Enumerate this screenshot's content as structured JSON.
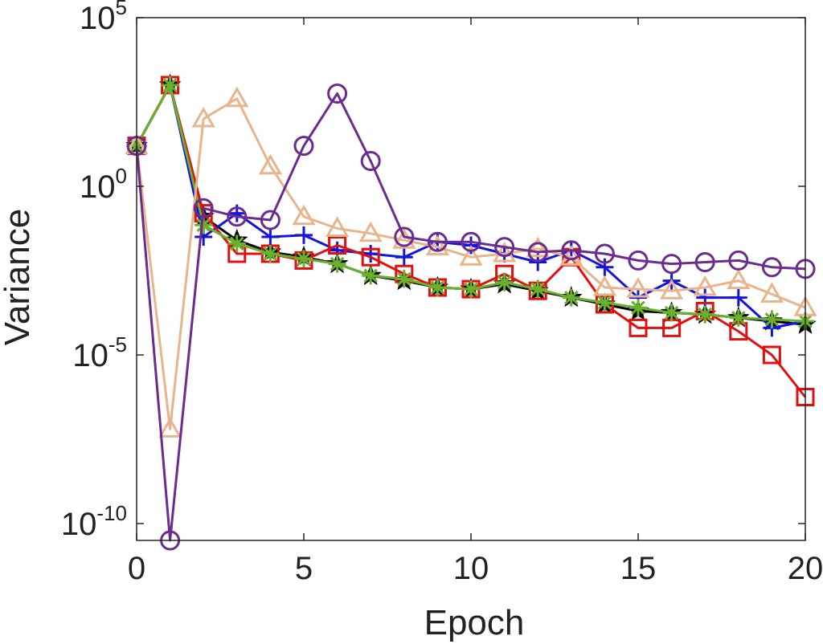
{
  "chart_data": {
    "type": "line",
    "title": "",
    "xlabel": "Epoch",
    "ylabel": "Variance",
    "xlim": [
      0,
      20
    ],
    "ylim_log10": [
      -10.5,
      5
    ],
    "yscale": "log",
    "grid": false,
    "box": true,
    "x_ticks": [
      "0",
      "5",
      "10",
      "15",
      "20"
    ],
    "y_ticks": [
      {
        "base": "10",
        "exp": "5",
        "value_log10": 5
      },
      {
        "base": "10",
        "exp": "0",
        "value_log10": 0
      },
      {
        "base": "10",
        "exp": "-5",
        "value_log10": -5
      },
      {
        "base": "10",
        "exp": "-10",
        "value_log10": -10
      }
    ],
    "x": [
      0,
      1,
      2,
      3,
      4,
      5,
      6,
      7,
      8,
      9,
      10,
      11,
      12,
      13,
      14,
      15,
      16,
      17,
      18,
      19,
      20
    ],
    "series": [
      {
        "color": "#000000",
        "marker": "pentagram",
        "log10_values": [
          1.2,
          3.0,
          -0.9,
          -1.6,
          -1.95,
          -2.1,
          -2.3,
          -2.65,
          -2.8,
          -3.0,
          -3.05,
          -2.9,
          -3.1,
          -3.3,
          -3.5,
          -3.7,
          -3.75,
          -3.8,
          -3.9,
          -4.0,
          -4.1
        ]
      },
      {
        "color": "#1414e0",
        "marker": "plus",
        "log10_values": [
          1.2,
          3.0,
          -1.5,
          -0.8,
          -1.5,
          -1.45,
          -1.9,
          -2.0,
          -2.1,
          -1.65,
          -1.75,
          -2.0,
          -2.25,
          -1.9,
          -2.4,
          -3.3,
          -2.8,
          -3.3,
          -3.3,
          -4.2,
          -4.0
        ]
      },
      {
        "color": "#e01010",
        "marker": "square",
        "log10_values": [
          1.2,
          3.0,
          -0.8,
          -2.0,
          -2.0,
          -2.2,
          -1.75,
          -2.1,
          -2.6,
          -3.0,
          -3.05,
          -2.6,
          -3.1,
          -2.1,
          -3.5,
          -4.2,
          -4.2,
          -3.7,
          -4.3,
          -5.0,
          -6.25
        ]
      },
      {
        "color": "#6ab02c",
        "marker": "asterisk",
        "log10_values": [
          1.2,
          3.0,
          -1.15,
          -1.7,
          -2.0,
          -2.15,
          -2.3,
          -2.65,
          -2.75,
          -3.0,
          -3.05,
          -2.85,
          -3.05,
          -3.3,
          -3.45,
          -3.6,
          -3.75,
          -3.8,
          -3.9,
          -3.95,
          -4.0
        ]
      },
      {
        "color": "#e8b48c",
        "marker": "triangle",
        "log10_values": [
          1.2,
          -7.2,
          2.0,
          2.6,
          0.6,
          -0.9,
          -1.25,
          -1.4,
          -1.6,
          -1.8,
          -2.1,
          -2.0,
          -1.85,
          -2.1,
          -3.0,
          -3.05,
          -3.1,
          -3.0,
          -2.8,
          -3.2,
          -3.6
        ]
      },
      {
        "color": "#6a2c8e",
        "marker": "circle",
        "log10_values": [
          1.2,
          -10.5,
          -0.65,
          -0.9,
          -1.0,
          1.2,
          2.75,
          0.75,
          -1.5,
          -1.65,
          -1.65,
          -1.8,
          -1.95,
          -1.9,
          -2.0,
          -2.2,
          -2.3,
          -2.25,
          -2.2,
          -2.4,
          -2.45
        ]
      }
    ]
  }
}
